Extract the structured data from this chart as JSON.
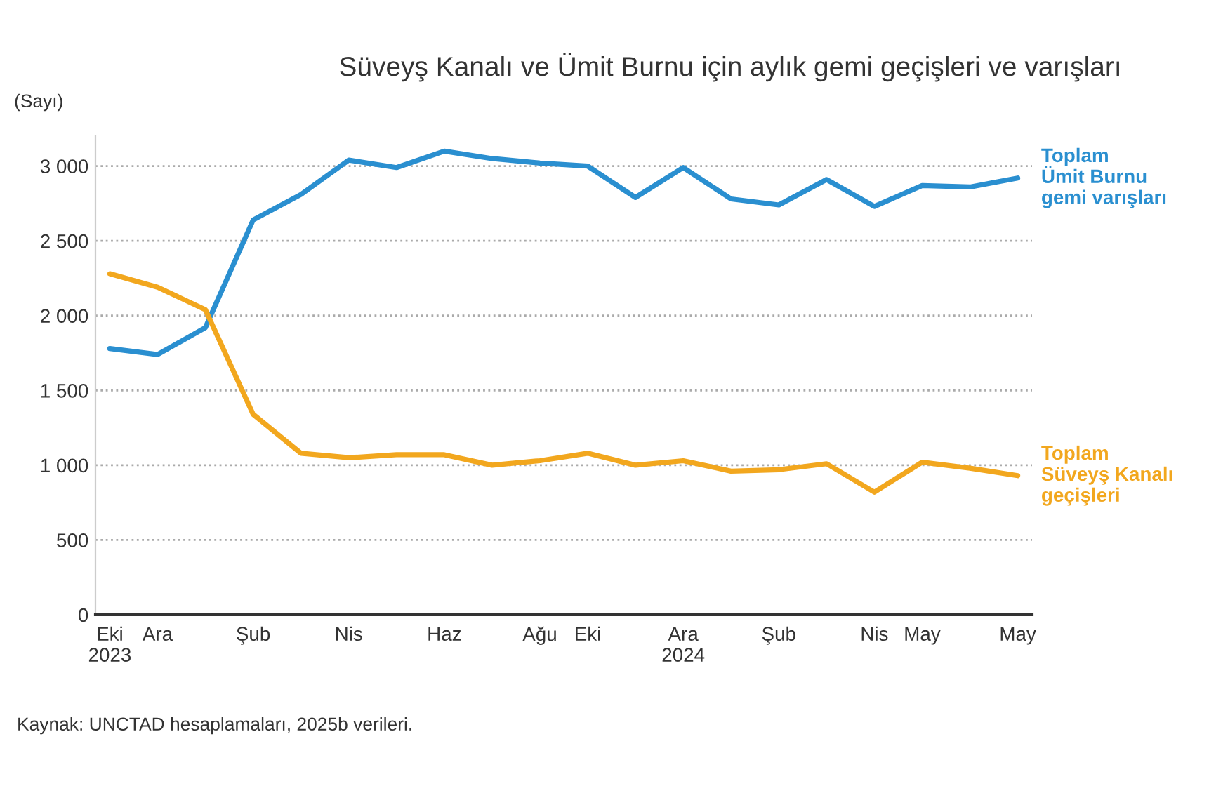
{
  "chart_data": {
    "type": "line",
    "title": "Süveyş Kanalı ve Ümit Burnu için aylık gemi geçişleri ve varışları",
    "ylabel": "(Sayı)",
    "annotations": [
      "Kaynak: UNCTAD hesaplamaları, 2025b verileri."
    ],
    "categories": [
      "Eki\n2023",
      "Ara",
      null,
      "Şub",
      null,
      "Nis",
      null,
      "Haz",
      null,
      "Ağu",
      "Eki",
      null,
      "Ara\n2024",
      null,
      "Şub",
      null,
      "Nis",
      "May",
      null,
      "May"
    ],
    "ylim": [
      0,
      3200
    ],
    "yticks": [
      0,
      500,
      {
        "value": 1000,
        "label": "1 000"
      },
      {
        "value": 1500,
        "label": "1 500"
      },
      {
        "value": 2000,
        "label": "2 000"
      },
      {
        "value": 2500,
        "label": "2 500"
      },
      {
        "value": 3000,
        "label": "3 000"
      }
    ],
    "grid": "y",
    "line_style": "solid",
    "series": [
      {
        "name": "Toplam\nÜmit Burnu\ngemi varışları",
        "color": "#2a8fd0",
        "values": [
          1780,
          1740,
          1920,
          2640,
          2810,
          3040,
          2990,
          3100,
          3050,
          3020,
          3000,
          2790,
          2990,
          2780,
          2740,
          2910,
          2730,
          2870,
          2860,
          2920
        ]
      },
      {
        "name": "Toplam\nSüveyş Kanalı\ngeçişleri",
        "color": "#f2a71e",
        "values": [
          2280,
          2190,
          2040,
          1340,
          1080,
          1050,
          1070,
          1070,
          1000,
          1030,
          1080,
          1000,
          1030,
          960,
          970,
          1010,
          820,
          1020,
          980,
          930
        ]
      }
    ]
  }
}
